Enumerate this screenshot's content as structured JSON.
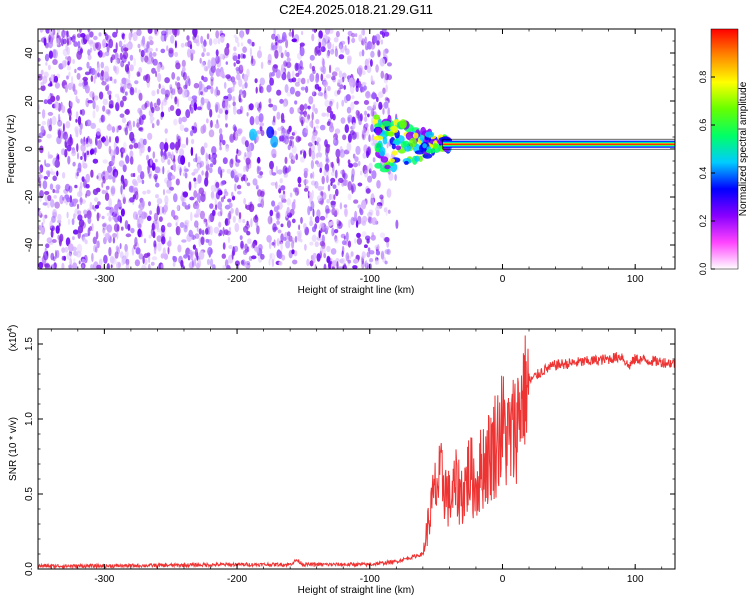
{
  "title": "C2E4.2025.018.21.29.G11",
  "chart_data": [
    {
      "type": "heatmap",
      "xlabel": "Height of straight line (km)",
      "ylabel": "Frequency (Hz)",
      "xlim": [
        -350,
        130
      ],
      "ylim": [
        -50,
        50
      ],
      "xticks": [
        -300,
        -200,
        -100,
        0,
        100
      ],
      "yticks": [
        -40,
        -20,
        0,
        20,
        40
      ],
      "colorbar": {
        "label": "Normalized spectral amplitude",
        "range": [
          0.0,
          1.0
        ],
        "ticks": [
          "0.0",
          "0.2",
          "0.4",
          "0.6",
          "0.8"
        ],
        "tick_values": [
          0.0,
          0.2,
          0.4,
          0.6,
          0.8
        ],
        "colors": [
          "#ffffff",
          "#ff44ff",
          "#8800ff",
          "#0000ff",
          "#00ccff",
          "#00ff66",
          "#66ff00",
          "#ffff00",
          "#ff8800",
          "#ff0000"
        ]
      },
      "features": {
        "noise_region_x": [
          -350,
          -85
        ],
        "noise_gap_x": -178,
        "signal_line_freq_hz": 2,
        "signal_start_x": -95
      },
      "grid": false
    },
    {
      "type": "line",
      "xlabel": "Height of straight line (km)",
      "ylabel": "SNR (10 * v/v)",
      "multiplier": "(x10",
      "multiplier_exp": "4",
      "xlim": [
        -350,
        130
      ],
      "ylim": [
        0,
        1.6
      ],
      "xticks": [
        -300,
        -200,
        -100,
        0,
        100
      ],
      "yticks": [
        "0.0",
        "0.5",
        "1.0",
        "1.5"
      ],
      "ytick_values": [
        0.0,
        0.5,
        1.0,
        1.5
      ],
      "color": "#ee3333",
      "series": [
        {
          "x": [
            -350,
            -300,
            -250,
            -200,
            -160,
            -155,
            -150,
            -120,
            -100,
            -80,
            -60,
            -55,
            -50,
            -45,
            -40,
            -35,
            -30,
            -25,
            -20,
            -15,
            -10,
            -5,
            0,
            5,
            10,
            15,
            20,
            30,
            40,
            50,
            60,
            70,
            80,
            90,
            95,
            100,
            110,
            120,
            130
          ],
          "y": [
            0.02,
            0.02,
            0.025,
            0.03,
            0.03,
            0.06,
            0.03,
            0.03,
            0.03,
            0.05,
            0.1,
            0.35,
            0.55,
            0.6,
            0.45,
            0.55,
            0.5,
            0.65,
            0.55,
            0.7,
            0.75,
            0.85,
            0.95,
            0.85,
            0.95,
            1.15,
            1.25,
            1.32,
            1.36,
            1.37,
            1.38,
            1.39,
            1.4,
            1.42,
            1.35,
            1.4,
            1.39,
            1.38,
            1.37
          ]
        }
      ],
      "grid": false
    }
  ]
}
